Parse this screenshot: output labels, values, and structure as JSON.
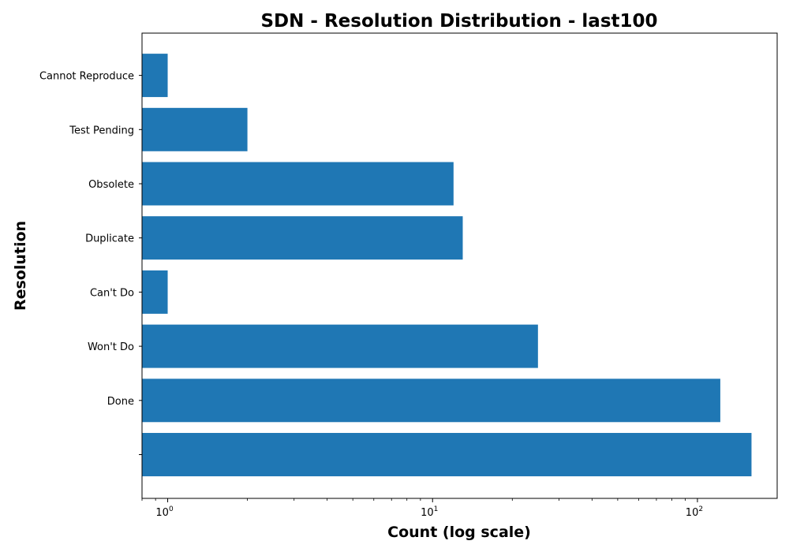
{
  "chart_data": {
    "type": "bar",
    "orientation": "horizontal",
    "title": "SDN - Resolution Distribution - last100",
    "xlabel": "Count (log scale)",
    "ylabel": "Resolution",
    "x_scale": "log",
    "xlim": [
      0.8,
      200
    ],
    "x_ticks": [
      {
        "value": 1,
        "base": "10",
        "exp": "0"
      },
      {
        "value": 10,
        "base": "10",
        "exp": "1"
      },
      {
        "value": 100,
        "base": "10",
        "exp": "2"
      }
    ],
    "categories": [
      "",
      "Done",
      "Won't Do",
      "Can't Do",
      "Duplicate",
      "Obsolete",
      "Test Pending",
      "Cannot Reproduce"
    ],
    "values": [
      160,
      122,
      25,
      1,
      13,
      12,
      2,
      1
    ],
    "bar_color": "#1f77b4",
    "grid": false,
    "legend": "none"
  }
}
